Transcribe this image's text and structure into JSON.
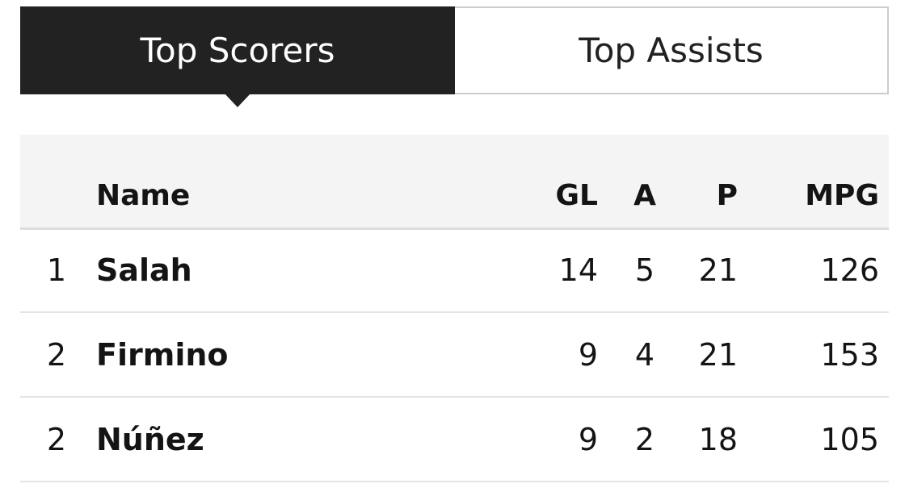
{
  "tabs": [
    {
      "label": "Top Scorers",
      "active": true
    },
    {
      "label": "Top Assists",
      "active": false
    }
  ],
  "table": {
    "headers": [
      "",
      "Name",
      "GL",
      "A",
      "P",
      "MPG"
    ],
    "rows": [
      [
        1,
        "Salah",
        14,
        5,
        21,
        126
      ],
      [
        2,
        "Firmino",
        9,
        4,
        21,
        153
      ],
      [
        2,
        "Núñez",
        9,
        2,
        18,
        105
      ]
    ]
  }
}
